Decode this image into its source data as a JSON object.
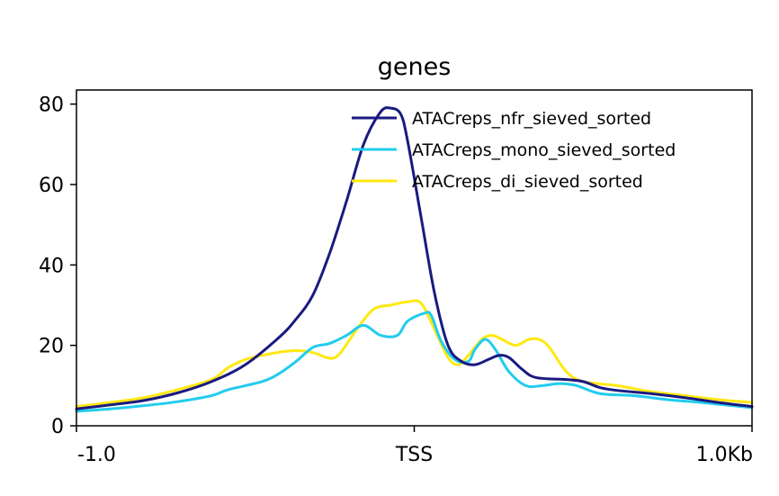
{
  "chart_data": {
    "type": "line",
    "title": "genes",
    "xlabel": "",
    "ylabel": "",
    "x_ticks": [
      {
        "value": -1.0,
        "label": "-1.0"
      },
      {
        "value": 0.0,
        "label": "TSS"
      },
      {
        "value": 1.0,
        "label": "1.0Kb"
      }
    ],
    "y_ticks": [
      {
        "value": 0,
        "label": "0"
      },
      {
        "value": 20,
        "label": "20"
      },
      {
        "value": 40,
        "label": "40"
      },
      {
        "value": 60,
        "label": "60"
      },
      {
        "value": 80,
        "label": "80"
      }
    ],
    "xlim": [
      -1.0,
      1.0
    ],
    "ylim": [
      0,
      83.5
    ],
    "grid": false,
    "legend_position": "top-right",
    "series": [
      {
        "name": "ATACreps_nfr_sieved_sorted",
        "color": "#1a1a80",
        "points": [
          [
            -1.0,
            4.2
          ],
          [
            -0.9,
            5.2
          ],
          [
            -0.8,
            6.3
          ],
          [
            -0.7,
            8.2
          ],
          [
            -0.6,
            11.0
          ],
          [
            -0.5,
            15.2
          ],
          [
            -0.4,
            22.0
          ],
          [
            -0.35,
            26.5
          ],
          [
            -0.3,
            32.5
          ],
          [
            -0.25,
            43.0
          ],
          [
            -0.2,
            56.0
          ],
          [
            -0.15,
            70.0
          ],
          [
            -0.1,
            78.0
          ],
          [
            -0.07,
            79.0
          ],
          [
            -0.04,
            77.5
          ],
          [
            -0.02,
            71.0
          ],
          [
            0.02,
            52.0
          ],
          [
            0.06,
            33.0
          ],
          [
            0.1,
            20.0
          ],
          [
            0.14,
            16.0
          ],
          [
            0.18,
            15.2
          ],
          [
            0.22,
            16.5
          ],
          [
            0.25,
            17.5
          ],
          [
            0.28,
            17.0
          ],
          [
            0.32,
            14.0
          ],
          [
            0.36,
            12.0
          ],
          [
            0.45,
            11.5
          ],
          [
            0.5,
            11.0
          ],
          [
            0.55,
            9.5
          ],
          [
            0.6,
            8.8
          ],
          [
            0.7,
            8.0
          ],
          [
            0.8,
            7.0
          ],
          [
            0.9,
            5.8
          ],
          [
            1.0,
            4.8
          ]
        ]
      },
      {
        "name": "ATACreps_mono_sieved_sorted",
        "color": "#22ccee",
        "points": [
          [
            -1.0,
            3.6
          ],
          [
            -0.9,
            4.2
          ],
          [
            -0.8,
            5.0
          ],
          [
            -0.7,
            6.0
          ],
          [
            -0.6,
            7.5
          ],
          [
            -0.55,
            9.0
          ],
          [
            -0.45,
            11.0
          ],
          [
            -0.4,
            13.0
          ],
          [
            -0.35,
            16.0
          ],
          [
            -0.3,
            19.5
          ],
          [
            -0.25,
            20.5
          ],
          [
            -0.2,
            22.5
          ],
          [
            -0.15,
            25.0
          ],
          [
            -0.1,
            22.5
          ],
          [
            -0.05,
            22.5
          ],
          [
            -0.02,
            26.0
          ],
          [
            0.03,
            28.0
          ],
          [
            0.05,
            27.5
          ],
          [
            0.08,
            21.0
          ],
          [
            0.12,
            16.5
          ],
          [
            0.16,
            16.0
          ],
          [
            0.18,
            19.0
          ],
          [
            0.21,
            21.5
          ],
          [
            0.24,
            19.0
          ],
          [
            0.28,
            13.5
          ],
          [
            0.33,
            10.0
          ],
          [
            0.38,
            10.0
          ],
          [
            0.43,
            10.5
          ],
          [
            0.48,
            10.0
          ],
          [
            0.55,
            8.0
          ],
          [
            0.65,
            7.5
          ],
          [
            0.75,
            6.5
          ],
          [
            0.85,
            5.8
          ],
          [
            1.0,
            4.5
          ]
        ]
      },
      {
        "name": "ATACreps_di_sieved_sorted",
        "color": "#ffe810",
        "points": [
          [
            -1.0,
            4.8
          ],
          [
            -0.9,
            5.8
          ],
          [
            -0.8,
            7.0
          ],
          [
            -0.7,
            9.0
          ],
          [
            -0.6,
            11.5
          ],
          [
            -0.55,
            14.5
          ],
          [
            -0.5,
            16.5
          ],
          [
            -0.45,
            17.5
          ],
          [
            -0.4,
            18.3
          ],
          [
            -0.35,
            18.7
          ],
          [
            -0.3,
            18.2
          ],
          [
            -0.25,
            16.8
          ],
          [
            -0.22,
            18.0
          ],
          [
            -0.17,
            24.0
          ],
          [
            -0.12,
            29.0
          ],
          [
            -0.07,
            30.0
          ],
          [
            -0.02,
            30.8
          ],
          [
            0.02,
            30.5
          ],
          [
            0.06,
            24.0
          ],
          [
            0.1,
            17.0
          ],
          [
            0.13,
            15.2
          ],
          [
            0.16,
            17.5
          ],
          [
            0.2,
            21.5
          ],
          [
            0.23,
            22.5
          ],
          [
            0.26,
            21.5
          ],
          [
            0.3,
            20.0
          ],
          [
            0.34,
            21.5
          ],
          [
            0.37,
            21.5
          ],
          [
            0.4,
            19.5
          ],
          [
            0.45,
            13.5
          ],
          [
            0.5,
            11.0
          ],
          [
            0.6,
            10.0
          ],
          [
            0.7,
            8.5
          ],
          [
            0.8,
            7.5
          ],
          [
            0.9,
            6.5
          ],
          [
            1.0,
            5.8
          ]
        ]
      }
    ]
  }
}
